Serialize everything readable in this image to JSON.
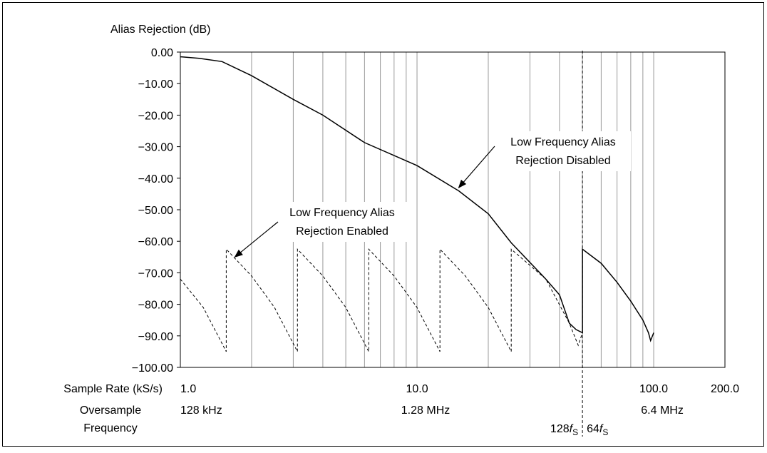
{
  "chart_data": {
    "type": "line",
    "y_label": "Alias Rejection (dB)",
    "x_row_labels": [
      "Sample Rate (kS/s)",
      "Oversample",
      "Frequency"
    ],
    "xscale": "log",
    "xlim": [
      1,
      200
    ],
    "ylim": [
      -100,
      0
    ],
    "xticks": [
      {
        "value": 1,
        "label": "1.0"
      },
      {
        "value": 10,
        "label": "10.0"
      },
      {
        "value": 100,
        "label": "100.0"
      },
      {
        "value": 200,
        "label": "200.0"
      }
    ],
    "minor_xticks": [
      2,
      3,
      4,
      5,
      6,
      7,
      8,
      9,
      20,
      30,
      40,
      50,
      60,
      70,
      80,
      90
    ],
    "oversample_ticks": [
      {
        "value": 1,
        "label": "128 kHz"
      },
      {
        "value": 10,
        "label": "1.28 MHz"
      },
      {
        "value": 100,
        "label": "6.4 MHz"
      }
    ],
    "yticks": [
      {
        "value": 0,
        "label": "0.00"
      },
      {
        "value": -10,
        "label": "−10.00"
      },
      {
        "value": -20,
        "label": "−20.00"
      },
      {
        "value": -30,
        "label": "−30.00"
      },
      {
        "value": -40,
        "label": "−40.00"
      },
      {
        "value": -50,
        "label": "−50.00"
      },
      {
        "value": -60,
        "label": "−60.00"
      },
      {
        "value": -70,
        "label": "−70.00"
      },
      {
        "value": -80,
        "label": "−80.00"
      },
      {
        "value": -90,
        "label": "−90.00"
      },
      {
        "value": -100,
        "label": "−100.00"
      }
    ],
    "grid": true,
    "vline": {
      "x": 50,
      "labels": [
        {
          "coef": "128",
          "symbol": "f",
          "subscript": "S"
        },
        {
          "coef": "64",
          "symbol": "f",
          "subscript": "S"
        }
      ]
    },
    "series": [
      {
        "style": "solid",
        "color": "#000000",
        "x": [
          1,
          1.2,
          1.5,
          2,
          3,
          4,
          6,
          10,
          15,
          20,
          25,
          35,
          40,
          44,
          47,
          50,
          50,
          60,
          70,
          80,
          90,
          95,
          97,
          100
        ],
        "values": [
          -1.5,
          -2,
          -3,
          -7.5,
          -15,
          -20,
          -28.7,
          -36,
          -44,
          -51.3,
          -60.5,
          -72,
          -77,
          -86,
          -88,
          -89,
          -62.5,
          -67,
          -73,
          -79,
          -85,
          -89,
          -91.5,
          -89
        ]
      },
      {
        "style": "dashed",
        "color": "#000000",
        "x": [
          1,
          1.25,
          1.5625,
          1.5625,
          2,
          2.5,
          3.125,
          3.125,
          4,
          5,
          6.25,
          6.25,
          8,
          10,
          12.5,
          12.5,
          16,
          20,
          25,
          25,
          35,
          44,
          48,
          50,
          50
        ],
        "values": [
          -72,
          -81,
          -95,
          -62.5,
          -71,
          -81,
          -95,
          -62.5,
          -71,
          -81,
          -95,
          -62.5,
          -71,
          -81,
          -95,
          -62.5,
          -71,
          -81,
          -95,
          -62.5,
          -72,
          -86,
          -93,
          -89,
          -62.5
        ]
      }
    ],
    "annotations": [
      {
        "lines": [
          "Low Frequency Alias",
          "Rejection Disabled"
        ],
        "x": 15,
        "y": -43
      },
      {
        "lines": [
          "Low Frequency Alias",
          "Rejection Enabled"
        ],
        "x": 1.7,
        "y": -65
      }
    ]
  }
}
